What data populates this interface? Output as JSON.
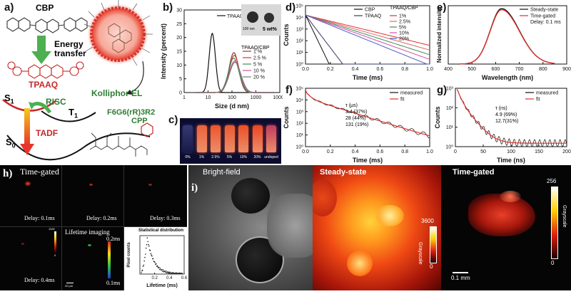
{
  "panels": {
    "a": {
      "label": "a)",
      "cbp": "CBP",
      "energy_transfer": "Energy\ntransfer",
      "tpaaq": "TPAAQ",
      "risc": "RISC",
      "s1": "S",
      "s1_sub": "1",
      "t1": "T",
      "t1_sub": "1",
      "s0": "S",
      "s0_sub": "0",
      "tadf": "TADF",
      "kolliphor": "Kolliphor EL",
      "peptide": "F6G6(rR)3R2",
      "cpp": "CPP"
    },
    "b": {
      "label": "b)",
      "inset_scale": "100 nm",
      "inset_wt": "5 wt%",
      "legend_title": "TPAAQ/CBP"
    },
    "c": {
      "label": "c)",
      "vials": [
        "0%",
        "1%",
        "2.5%",
        "5%",
        "10%",
        "20%",
        "undoped"
      ]
    },
    "d": {
      "label": "d)",
      "legend_title": "TPAAQ/CBP"
    },
    "e": {
      "label": "e)"
    },
    "f": {
      "label": "f)",
      "tau_header": "τ (μs)",
      "tau_lines": [
        "3.4  (37%)",
        "28   (44%)",
        "131 (19%)"
      ]
    },
    "g": {
      "label": "g)",
      "tau_header": "τ (ns)",
      "tau_lines": [
        "4.9 (69%)",
        "12.7(31%)"
      ]
    },
    "h": {
      "label": "h)",
      "time_gated": "Time-gated",
      "delays": [
        "Delay: 0.1ms",
        "Delay: 0.2ms",
        "Delay: 0.3ms",
        "Delay: 0.4ms"
      ],
      "lifetime_imaging": "Lifetime imaging",
      "lt_max": "0.2ms",
      "lt_min": "0.1ms",
      "cb_max": "1126",
      "cb_min": "0",
      "scale": "20 μm",
      "inset_title": "Statistical distribution"
    },
    "i": {
      "label": "i)",
      "titles": [
        "Bright-field",
        "Steady-state",
        "Time-gated"
      ],
      "cb1_max": "3600",
      "cb1_min": "0",
      "cb2_max": "256",
      "cb2_min": "0",
      "grayscale": "Grayscale",
      "scale": "0.1 mm"
    }
  },
  "chart_data": [
    {
      "panel": "b",
      "type": "line",
      "xlabel": "Size (d nm)",
      "ylabel": "Intensity (percent)",
      "xscale": "log",
      "xlim": [
        1,
        10000
      ],
      "ylim": [
        0,
        30
      ],
      "xticks": [
        "1",
        "10",
        "100",
        "1000",
        "10000"
      ],
      "yticks": [
        0,
        5,
        10,
        15,
        20,
        25,
        30
      ],
      "series": [
        {
          "name": "TPAAQ",
          "color": "#111111",
          "peak_x": 15,
          "peak_y": 21.5,
          "width": 0.13
        },
        {
          "name": "1 %",
          "color": "#8b3d2a",
          "peak_x": 120,
          "peak_y": 14.5,
          "width": 0.2
        },
        {
          "name": "2.5 %",
          "color": "#e0312c",
          "peak_x": 125,
          "peak_y": 13.5,
          "width": 0.21
        },
        {
          "name": "5 %",
          "color": "#3a8f56",
          "peak_x": 118,
          "peak_y": 12.5,
          "width": 0.22
        },
        {
          "name": "10 %",
          "color": "#d94fa4",
          "peak_x": 130,
          "peak_y": 11.5,
          "width": 0.23
        },
        {
          "name": "20 %",
          "color": "#777777",
          "peak_x": 135,
          "peak_y": 11.0,
          "width": 0.24
        }
      ]
    },
    {
      "panel": "d",
      "type": "line",
      "xlabel": "Time (ms)",
      "ylabel": "Counts",
      "yscale": "log",
      "xlim": [
        0,
        1.0
      ],
      "ylim_exp": [
        0,
        5
      ],
      "xticks": [
        "0.0",
        "0.2",
        "0.4",
        "0.6",
        "0.8",
        "1.0"
      ],
      "yticks": [
        "10⁰",
        "10¹",
        "10²",
        "10³",
        "10⁴",
        "10⁵"
      ],
      "series": [
        {
          "name": "CBP",
          "color": "#111111",
          "decay": 22
        },
        {
          "name": "TPAAQ",
          "color": "#333a66",
          "decay": 14
        },
        {
          "name": "1%",
          "color": "#e0312c",
          "decay": 2.6
        },
        {
          "name": "2.5%",
          "color": "#d96a6a",
          "decay": 3.0
        },
        {
          "name": "5%",
          "color": "#3a8f56",
          "decay": 3.4
        },
        {
          "name": "10%",
          "color": "#d94fa4",
          "decay": 3.8
        },
        {
          "name": "20%",
          "color": "#4a5fc4",
          "decay": 4.3
        }
      ]
    },
    {
      "panel": "e",
      "type": "line",
      "xlabel": "Wavelength (nm)",
      "ylabel": "Normalized intensity",
      "xlim": [
        400,
        900
      ],
      "xticks": [
        "400",
        "500",
        "600",
        "700",
        "800",
        "900"
      ],
      "peak_nm": 625,
      "annotation": "Delay: 0.1 ms",
      "series": [
        {
          "name": "Steady-state",
          "color": "#111111"
        },
        {
          "name": "Time-gated",
          "color": "#e0312c"
        }
      ]
    },
    {
      "panel": "f",
      "type": "line",
      "xlabel": "Time (ms)",
      "ylabel": "Counts",
      "yscale": "log",
      "xlim": [
        0,
        1.0
      ],
      "ylim_exp": [
        0,
        5
      ],
      "xticks": [
        "0.0",
        "0.2",
        "0.4",
        "0.6",
        "0.8",
        "1.0"
      ],
      "yticks": [
        "10⁰",
        "10¹",
        "10²",
        "10³",
        "10⁴",
        "10⁵"
      ],
      "series": [
        {
          "name": "measured",
          "color": "#111111"
        },
        {
          "name": "fit",
          "color": "#e0312c"
        }
      ]
    },
    {
      "panel": "g",
      "type": "line",
      "xlabel": "Time (ns)",
      "ylabel": "Counts",
      "yscale": "log",
      "xlim": [
        0,
        200
      ],
      "ylim_exp": [
        0,
        3
      ],
      "xticks": [
        "0",
        "50",
        "100",
        "150",
        "200"
      ],
      "yticks": [
        "10⁰",
        "10¹",
        "10²",
        "10³"
      ],
      "series": [
        {
          "name": "measured",
          "color": "#111111"
        },
        {
          "name": "fit",
          "color": "#e0312c"
        }
      ]
    },
    {
      "panel": "h-inset",
      "type": "scatter",
      "xlabel": "Lifetime (ms)",
      "ylabel": "Pixel counts",
      "xlim": [
        0,
        0.6
      ],
      "xticks": [
        "0.2",
        "0.4",
        "0.6"
      ],
      "peak_x": 0.1
    }
  ]
}
